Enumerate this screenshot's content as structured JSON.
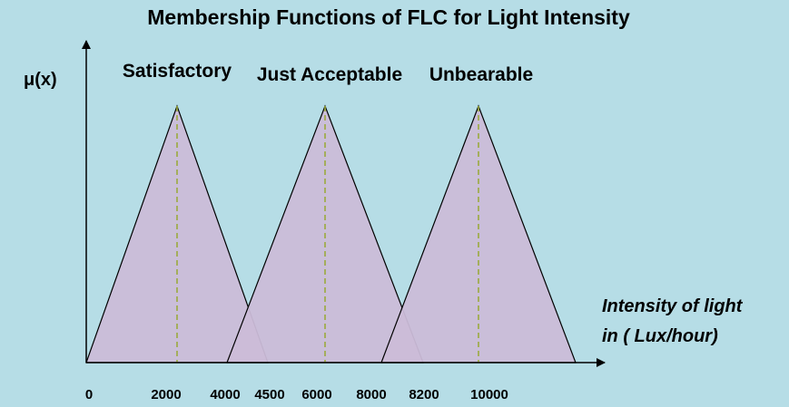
{
  "chart_data": {
    "type": "area",
    "title": "Membership Functions of FLC for Light Intensity",
    "ylabel": "μ(x)",
    "xlabel_line1": "Intensity of light",
    "xlabel_line2": "in ( Lux/hour)",
    "ylim": [
      0,
      1
    ],
    "x_ticks": [
      "0",
      "2000",
      "4000",
      "4500",
      "6000",
      "8000",
      "8200",
      "10000"
    ],
    "series": [
      {
        "name": "Satisfactory",
        "points": [
          [
            0,
            0
          ],
          [
            2000,
            1
          ],
          [
            4500,
            0
          ]
        ]
      },
      {
        "name": "Just Acceptable",
        "points": [
          [
            4000,
            0
          ],
          [
            6000,
            1
          ],
          [
            8200,
            0
          ]
        ]
      },
      {
        "name": "Unbearable",
        "points": [
          [
            8000,
            0
          ],
          [
            10000,
            1
          ],
          [
            12000,
            0
          ]
        ]
      }
    ],
    "colors": {
      "background": "#b6dde6",
      "fill": "#cbbcd8",
      "outline": "#000000",
      "peak_line": "#9aaa3c"
    }
  }
}
